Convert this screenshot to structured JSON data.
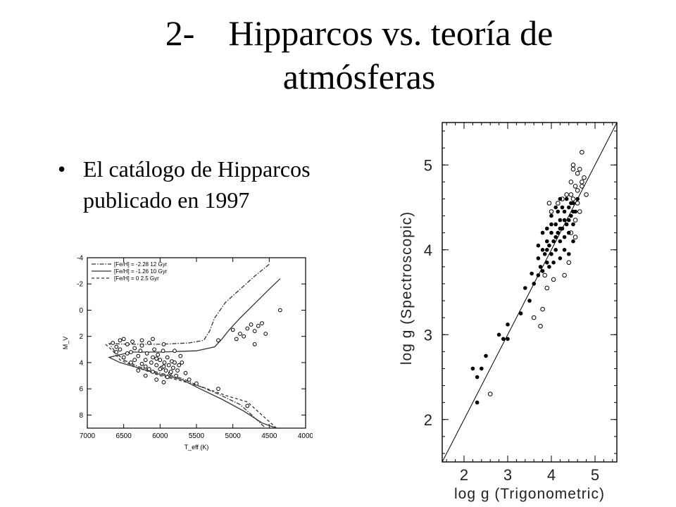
{
  "title": {
    "number": "2-",
    "line1": "Hipparcos vs. teoría de",
    "line2": "atmósferas"
  },
  "bullet": {
    "marker": "•",
    "line1": "El catálogo de Hipparcos",
    "line2": "publicado en 1997"
  },
  "chart_data": [
    {
      "type": "scatter",
      "ylabel": "M_V",
      "xlabel": "T_eff (K)",
      "xlim": [
        7000,
        4000
      ],
      "ylim": [
        -4,
        9
      ],
      "x_ticks": [
        7000,
        6500,
        6000,
        5500,
        5000,
        4500,
        4000
      ],
      "y_ticks": [
        -4,
        -2,
        0,
        2,
        4,
        6,
        8
      ],
      "legend": [
        "[Fe/H] = -2.28  12 Gyr",
        "[Fe/H] = -1.26  10 Gyr",
        "[Fe/H] =  0     2.5 Gyr"
      ],
      "legend_position": "top-left",
      "series": [
        {
          "name": "[Fe/H] = -2.28  12 Gyr",
          "style": "dash-dot",
          "points": [
            [
              4500,
              -3.5
            ],
            [
              4700,
              -2.6
            ],
            [
              4900,
              -1.6
            ],
            [
              5100,
              -0.6
            ],
            [
              5250,
              0.6
            ],
            [
              5320,
              1.6
            ],
            [
              5400,
              2.3
            ],
            [
              5600,
              2.5
            ],
            [
              6000,
              2.6
            ],
            [
              6400,
              2.6
            ],
            [
              6700,
              2.55
            ],
            [
              6600,
              3.3
            ],
            [
              6500,
              3.8
            ],
            [
              6300,
              4.3
            ],
            [
              6000,
              4.8
            ],
            [
              5700,
              5.2
            ],
            [
              5500,
              5.7
            ],
            [
              5200,
              6.4
            ],
            [
              4900,
              7.2
            ],
            [
              4700,
              8.2
            ],
            [
              4550,
              9.0
            ]
          ]
        },
        {
          "name": "[Fe/H] = -1.26  10 Gyr",
          "style": "solid",
          "points": [
            [
              4350,
              -2.4
            ],
            [
              4500,
              -1.6
            ],
            [
              4700,
              -0.5
            ],
            [
              4900,
              0.6
            ],
            [
              5050,
              1.5
            ],
            [
              5150,
              2.2
            ],
            [
              5250,
              2.8
            ],
            [
              5500,
              3.1
            ],
            [
              6000,
              3.2
            ],
            [
              6400,
              3.2
            ],
            [
              6700,
              3.6
            ],
            [
              6550,
              4.0
            ],
            [
              6300,
              4.4
            ],
            [
              6000,
              4.9
            ],
            [
              5700,
              5.3
            ],
            [
              5450,
              6.0
            ],
            [
              5150,
              6.8
            ],
            [
              4850,
              7.7
            ],
            [
              4600,
              8.6
            ],
            [
              4400,
              9.0
            ]
          ]
        },
        {
          "name": "[Fe/H] =  0     2.5 Gyr",
          "style": "dashed",
          "points": [
            [
              6750,
              2.6
            ],
            [
              6650,
              3.1
            ],
            [
              6550,
              3.8
            ],
            [
              6300,
              4.4
            ],
            [
              6000,
              5.0
            ],
            [
              5700,
              5.4
            ],
            [
              5400,
              5.9
            ],
            [
              5100,
              6.5
            ],
            [
              4800,
              7.0
            ],
            [
              4400,
              9.0
            ]
          ]
        }
      ],
      "stars": [
        [
          6650,
          2.5
        ],
        [
          6600,
          2.8
        ],
        [
          6550,
          3.0
        ],
        [
          6500,
          2.2
        ],
        [
          6450,
          2.6
        ],
        [
          6400,
          3.2
        ],
        [
          6380,
          2.4
        ],
        [
          6350,
          2.9
        ],
        [
          6300,
          3.5
        ],
        [
          6270,
          3.1
        ],
        [
          6250,
          2.7
        ],
        [
          6200,
          3.8
        ],
        [
          6180,
          3.3
        ],
        [
          6150,
          2.5
        ],
        [
          6120,
          4.0
        ],
        [
          6100,
          3.6
        ],
        [
          6080,
          3.0
        ],
        [
          6050,
          4.2
        ],
        [
          6030,
          3.4
        ],
        [
          6000,
          3.8
        ],
        [
          5980,
          4.4
        ],
        [
          5960,
          3.1
        ],
        [
          5940,
          4.0
        ],
        [
          5920,
          4.6
        ],
        [
          5900,
          3.6
        ],
        [
          5880,
          4.2
        ],
        [
          5860,
          4.8
        ],
        [
          5840,
          3.9
        ],
        [
          5820,
          4.4
        ],
        [
          5800,
          4.0
        ],
        [
          5780,
          5.0
        ],
        [
          5760,
          4.6
        ],
        [
          5740,
          4.2
        ],
        [
          5720,
          3.5
        ],
        [
          6400,
          4.0
        ],
        [
          6300,
          4.6
        ],
        [
          6200,
          4.3
        ],
        [
          6100,
          4.7
        ],
        [
          6000,
          4.5
        ],
        [
          5900,
          5.1
        ],
        [
          6350,
          3.8
        ],
        [
          6250,
          4.1
        ],
        [
          6150,
          4.5
        ],
        [
          6050,
          3.7
        ],
        [
          5950,
          4.3
        ],
        [
          5850,
          4.7
        ],
        [
          6500,
          3.6
        ],
        [
          6450,
          3.3
        ],
        [
          6600,
          3.2
        ],
        [
          6550,
          2.3
        ],
        [
          6250,
          2.3
        ],
        [
          6100,
          2.2
        ],
        [
          5950,
          2.6
        ],
        [
          5800,
          3.1
        ],
        [
          5700,
          4.0
        ],
        [
          5650,
          4.8
        ],
        [
          5600,
          5.3
        ],
        [
          5500,
          5.6
        ],
        [
          5200,
          6.0
        ],
        [
          4800,
          7.3
        ],
        [
          5000,
          1.5
        ],
        [
          4950,
          2.2
        ],
        [
          4900,
          1.8
        ],
        [
          4850,
          2.0
        ],
        [
          4800,
          1.4
        ],
        [
          4750,
          1.1
        ],
        [
          4700,
          1.6
        ],
        [
          4650,
          1.2
        ],
        [
          4600,
          1.0
        ],
        [
          4550,
          1.8
        ],
        [
          4700,
          2.6
        ],
        [
          4350,
          0.0
        ],
        [
          5200,
          2.3
        ],
        [
          6200,
          5.0
        ],
        [
          6050,
          5.3
        ],
        [
          5950,
          5.5
        ]
      ]
    },
    {
      "type": "scatter",
      "xlabel": "log g (Trigonometric)",
      "ylabel": "log g (Spectroscopic)",
      "xlim": [
        1.5,
        5.5
      ],
      "ylim": [
        1.5,
        5.5
      ],
      "x_ticks": [
        2,
        3,
        4,
        5
      ],
      "y_ticks": [
        2,
        3,
        4,
        5
      ],
      "identity_line": true,
      "filled_points": [
        [
          2.2,
          2.6
        ],
        [
          2.3,
          2.5
        ],
        [
          2.3,
          2.2
        ],
        [
          2.4,
          2.6
        ],
        [
          2.5,
          2.75
        ],
        [
          2.8,
          3.0
        ],
        [
          2.9,
          2.95
        ],
        [
          3.0,
          3.12
        ],
        [
          3.0,
          2.95
        ],
        [
          3.3,
          3.25
        ],
        [
          3.4,
          3.55
        ],
        [
          3.5,
          3.4
        ],
        [
          3.55,
          3.72
        ],
        [
          3.6,
          3.6
        ],
        [
          3.7,
          3.7
        ],
        [
          3.7,
          3.9
        ],
        [
          3.75,
          3.8
        ],
        [
          3.8,
          4.0
        ],
        [
          3.8,
          3.75
        ],
        [
          3.85,
          3.95
        ],
        [
          3.9,
          4.1
        ],
        [
          3.9,
          3.85
        ],
        [
          3.95,
          4.05
        ],
        [
          4.0,
          4.2
        ],
        [
          4.0,
          3.95
        ],
        [
          4.05,
          4.1
        ],
        [
          4.1,
          4.3
        ],
        [
          4.1,
          4.0
        ],
        [
          4.15,
          4.2
        ],
        [
          4.2,
          4.35
        ],
        [
          4.2,
          4.1
        ],
        [
          4.25,
          4.25
        ],
        [
          4.3,
          4.45
        ],
        [
          4.3,
          4.15
        ],
        [
          4.35,
          4.3
        ],
        [
          4.4,
          4.5
        ],
        [
          4.4,
          4.2
        ],
        [
          4.45,
          4.4
        ],
        [
          4.5,
          4.55
        ],
        [
          4.5,
          4.3
        ],
        [
          4.55,
          4.45
        ],
        [
          4.6,
          4.6
        ],
        [
          3.9,
          4.25
        ],
        [
          4.0,
          4.4
        ],
        [
          4.1,
          4.5
        ],
        [
          4.2,
          4.6
        ],
        [
          4.3,
          4.0
        ],
        [
          4.4,
          3.95
        ],
        [
          4.5,
          4.1
        ],
        [
          4.2,
          3.9
        ],
        [
          3.95,
          3.8
        ],
        [
          4.05,
          3.85
        ],
        [
          4.15,
          4.45
        ],
        [
          4.25,
          4.5
        ],
        [
          4.35,
          4.6
        ],
        [
          4.45,
          4.55
        ],
        [
          3.7,
          4.05
        ],
        [
          3.8,
          4.2
        ],
        [
          3.9,
          4.0
        ],
        [
          4.0,
          4.3
        ],
        [
          4.1,
          4.15
        ],
        [
          4.2,
          4.25
        ],
        [
          4.3,
          4.35
        ],
        [
          4.4,
          4.35
        ],
        [
          4.5,
          4.45
        ]
      ],
      "open_points": [
        [
          2.6,
          2.3
        ],
        [
          3.6,
          3.2
        ],
        [
          3.75,
          3.1
        ],
        [
          3.8,
          3.3
        ],
        [
          3.9,
          3.55
        ],
        [
          3.85,
          3.7
        ],
        [
          4.05,
          3.65
        ],
        [
          4.3,
          3.7
        ],
        [
          4.4,
          3.85
        ],
        [
          4.45,
          4.2
        ],
        [
          4.5,
          4.6
        ],
        [
          4.55,
          4.35
        ],
        [
          4.6,
          4.7
        ],
        [
          4.6,
          4.9
        ],
        [
          4.65,
          4.95
        ],
        [
          4.7,
          4.8
        ],
        [
          4.7,
          5.15
        ],
        [
          4.75,
          4.85
        ],
        [
          4.8,
          4.65
        ],
        [
          4.55,
          4.75
        ],
        [
          4.45,
          4.8
        ],
        [
          4.5,
          4.95
        ],
        [
          4.6,
          4.55
        ],
        [
          4.35,
          4.65
        ],
        [
          4.25,
          4.6
        ],
        [
          4.15,
          4.55
        ],
        [
          4.5,
          5.0
        ],
        [
          4.0,
          4.45
        ],
        [
          3.95,
          4.55
        ],
        [
          4.7,
          4.75
        ],
        [
          4.65,
          4.45
        ],
        [
          4.55,
          4.15
        ],
        [
          4.45,
          4.65
        ]
      ]
    }
  ]
}
